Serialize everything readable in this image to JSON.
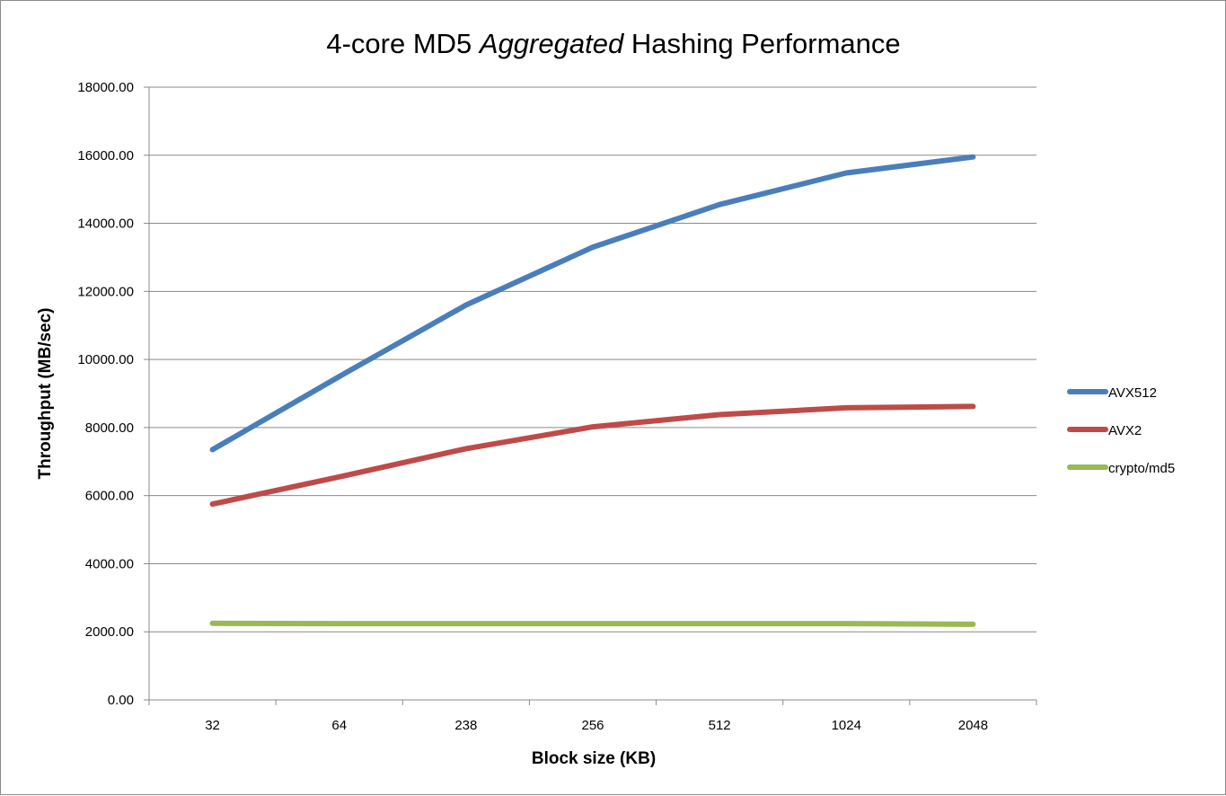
{
  "chart_data": {
    "type": "line",
    "title": {
      "prefix": "4-core MD5 ",
      "emphasis": "Aggregated",
      "suffix": " Hashing Performance"
    },
    "xlabel": "Block size (KB)",
    "ylabel": "Throughput (MB/sec)",
    "categories": [
      "32",
      "64",
      "238",
      "256",
      "512",
      "1024",
      "2048"
    ],
    "ylim": [
      0,
      18000
    ],
    "yticks": [
      0,
      2000,
      4000,
      6000,
      8000,
      10000,
      12000,
      14000,
      16000,
      18000
    ],
    "ytick_labels": [
      "0.00",
      "2000.00",
      "4000.00",
      "6000.00",
      "8000.00",
      "10000.00",
      "12000.00",
      "14000.00",
      "16000.00",
      "18000.00"
    ],
    "grid": true,
    "legend_position": "right",
    "series": [
      {
        "name": "AVX512",
        "color": "#4a7ebb",
        "values": [
          7350,
          9500,
          11600,
          13300,
          14550,
          15480,
          15950
        ]
      },
      {
        "name": "AVX2",
        "color": "#be4b48",
        "values": [
          5750,
          6550,
          7380,
          8020,
          8380,
          8580,
          8620
        ]
      },
      {
        "name": "crypto/md5",
        "color": "#98b954",
        "values": [
          2250,
          2240,
          2240,
          2240,
          2240,
          2240,
          2220
        ]
      }
    ]
  }
}
